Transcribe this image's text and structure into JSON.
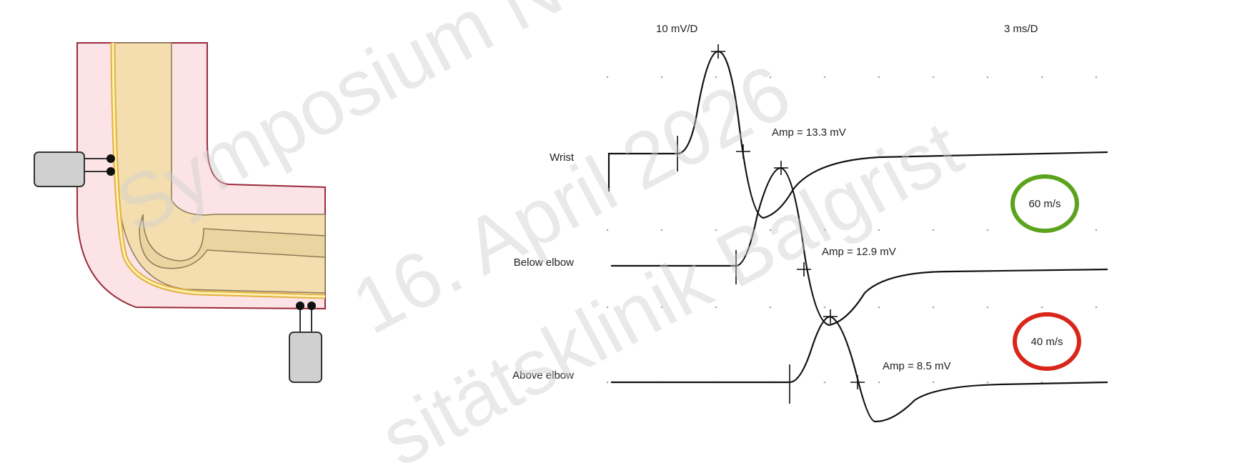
{
  "scale": {
    "amplitude": "10 mV/D",
    "time": "3 ms/D"
  },
  "traces": [
    {
      "label": "Wrist",
      "amplitude": "Amp = 13.3 mV"
    },
    {
      "label": "Below elbow",
      "amplitude": "Amp = 12.9 mV"
    },
    {
      "label": "Above elbow",
      "amplitude": "Amp = 8.5 mV"
    }
  ],
  "velocities": [
    "60 m/s",
    "40 m/s"
  ],
  "watermark": [
    "Symposium N",
    "16. April 2026",
    "sitätsklinik Balgrist"
  ]
}
